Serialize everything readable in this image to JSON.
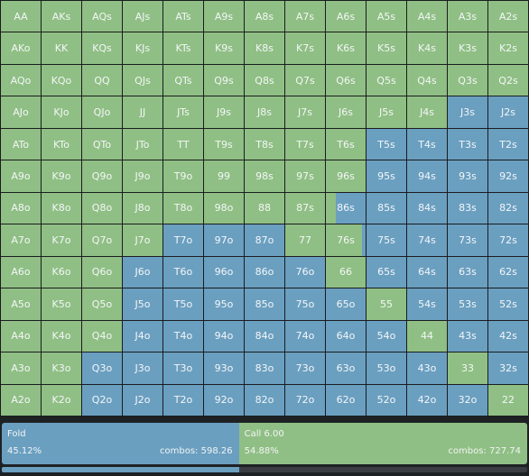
{
  "colors": {
    "fold": "#6a9fc0",
    "call": "#8fbf84"
  },
  "matrix": [
    [
      {
        "label": "AA",
        "call": 1
      },
      {
        "label": "AKs",
        "call": 1
      },
      {
        "label": "AQs",
        "call": 1
      },
      {
        "label": "AJs",
        "call": 1
      },
      {
        "label": "ATs",
        "call": 1
      },
      {
        "label": "A9s",
        "call": 1
      },
      {
        "label": "A8s",
        "call": 1
      },
      {
        "label": "A7s",
        "call": 1
      },
      {
        "label": "A6s",
        "call": 1
      },
      {
        "label": "A5s",
        "call": 1
      },
      {
        "label": "A4s",
        "call": 1
      },
      {
        "label": "A3s",
        "call": 1
      },
      {
        "label": "A2s",
        "call": 1
      }
    ],
    [
      {
        "label": "AKo",
        "call": 1
      },
      {
        "label": "KK",
        "call": 1
      },
      {
        "label": "KQs",
        "call": 1
      },
      {
        "label": "KJs",
        "call": 1
      },
      {
        "label": "KTs",
        "call": 1
      },
      {
        "label": "K9s",
        "call": 1
      },
      {
        "label": "K8s",
        "call": 1
      },
      {
        "label": "K7s",
        "call": 1
      },
      {
        "label": "K6s",
        "call": 1
      },
      {
        "label": "K5s",
        "call": 1
      },
      {
        "label": "K4s",
        "call": 1
      },
      {
        "label": "K3s",
        "call": 1
      },
      {
        "label": "K2s",
        "call": 1
      }
    ],
    [
      {
        "label": "AQo",
        "call": 1
      },
      {
        "label": "KQo",
        "call": 1
      },
      {
        "label": "QQ",
        "call": 1
      },
      {
        "label": "QJs",
        "call": 1
      },
      {
        "label": "QTs",
        "call": 1
      },
      {
        "label": "Q9s",
        "call": 1
      },
      {
        "label": "Q8s",
        "call": 1
      },
      {
        "label": "Q7s",
        "call": 1
      },
      {
        "label": "Q6s",
        "call": 1
      },
      {
        "label": "Q5s",
        "call": 1
      },
      {
        "label": "Q4s",
        "call": 1
      },
      {
        "label": "Q3s",
        "call": 1
      },
      {
        "label": "Q2s",
        "call": 1
      }
    ],
    [
      {
        "label": "AJo",
        "call": 1
      },
      {
        "label": "KJo",
        "call": 1
      },
      {
        "label": "QJo",
        "call": 1
      },
      {
        "label": "JJ",
        "call": 1
      },
      {
        "label": "JTs",
        "call": 1
      },
      {
        "label": "J9s",
        "call": 1
      },
      {
        "label": "J8s",
        "call": 1
      },
      {
        "label": "J7s",
        "call": 1
      },
      {
        "label": "J6s",
        "call": 1
      },
      {
        "label": "J5s",
        "call": 1
      },
      {
        "label": "J4s",
        "call": 1
      },
      {
        "label": "J3s",
        "call": 0
      },
      {
        "label": "J2s",
        "call": 0
      }
    ],
    [
      {
        "label": "ATo",
        "call": 1
      },
      {
        "label": "KTo",
        "call": 1
      },
      {
        "label": "QTo",
        "call": 1
      },
      {
        "label": "JTo",
        "call": 1
      },
      {
        "label": "TT",
        "call": 1
      },
      {
        "label": "T9s",
        "call": 1
      },
      {
        "label": "T8s",
        "call": 1
      },
      {
        "label": "T7s",
        "call": 1
      },
      {
        "label": "T6s",
        "call": 1
      },
      {
        "label": "T5s",
        "call": 0
      },
      {
        "label": "T4s",
        "call": 0
      },
      {
        "label": "T3s",
        "call": 0
      },
      {
        "label": "T2s",
        "call": 0
      }
    ],
    [
      {
        "label": "A9o",
        "call": 1
      },
      {
        "label": "K9o",
        "call": 1
      },
      {
        "label": "Q9o",
        "call": 1
      },
      {
        "label": "J9o",
        "call": 1
      },
      {
        "label": "T9o",
        "call": 1
      },
      {
        "label": "99",
        "call": 1
      },
      {
        "label": "98s",
        "call": 1
      },
      {
        "label": "97s",
        "call": 1
      },
      {
        "label": "96s",
        "call": 1
      },
      {
        "label": "95s",
        "call": 0
      },
      {
        "label": "94s",
        "call": 0
      },
      {
        "label": "93s",
        "call": 0
      },
      {
        "label": "92s",
        "call": 0
      }
    ],
    [
      {
        "label": "A8o",
        "call": 1
      },
      {
        "label": "K8o",
        "call": 1
      },
      {
        "label": "Q8o",
        "call": 1
      },
      {
        "label": "J8o",
        "call": 1
      },
      {
        "label": "T8o",
        "call": 1
      },
      {
        "label": "98o",
        "call": 1
      },
      {
        "label": "88",
        "call": 1
      },
      {
        "label": "87s",
        "call": 1
      },
      {
        "label": "86s",
        "call": 0.25
      },
      {
        "label": "85s",
        "call": 0
      },
      {
        "label": "84s",
        "call": 0
      },
      {
        "label": "83s",
        "call": 0
      },
      {
        "label": "82s",
        "call": 0
      }
    ],
    [
      {
        "label": "A7o",
        "call": 1
      },
      {
        "label": "K7o",
        "call": 1
      },
      {
        "label": "Q7o",
        "call": 1
      },
      {
        "label": "J7o",
        "call": 1
      },
      {
        "label": "T7o",
        "call": 0
      },
      {
        "label": "97o",
        "call": 0
      },
      {
        "label": "87o",
        "call": 0
      },
      {
        "label": "77",
        "call": 1
      },
      {
        "label": "76s",
        "call": 0.9
      },
      {
        "label": "75s",
        "call": 0
      },
      {
        "label": "74s",
        "call": 0
      },
      {
        "label": "73s",
        "call": 0
      },
      {
        "label": "72s",
        "call": 0
      }
    ],
    [
      {
        "label": "A6o",
        "call": 1
      },
      {
        "label": "K6o",
        "call": 1
      },
      {
        "label": "Q6o",
        "call": 1
      },
      {
        "label": "J6o",
        "call": 0
      },
      {
        "label": "T6o",
        "call": 0
      },
      {
        "label": "96o",
        "call": 0
      },
      {
        "label": "86o",
        "call": 0
      },
      {
        "label": "76o",
        "call": 0
      },
      {
        "label": "66",
        "call": 1
      },
      {
        "label": "65s",
        "call": 0
      },
      {
        "label": "64s",
        "call": 0
      },
      {
        "label": "63s",
        "call": 0
      },
      {
        "label": "62s",
        "call": 0
      }
    ],
    [
      {
        "label": "A5o",
        "call": 1
      },
      {
        "label": "K5o",
        "call": 1
      },
      {
        "label": "Q5o",
        "call": 1
      },
      {
        "label": "J5o",
        "call": 0
      },
      {
        "label": "T5o",
        "call": 0
      },
      {
        "label": "95o",
        "call": 0
      },
      {
        "label": "85o",
        "call": 0
      },
      {
        "label": "75o",
        "call": 0
      },
      {
        "label": "65o",
        "call": 0
      },
      {
        "label": "55",
        "call": 1
      },
      {
        "label": "54s",
        "call": 0
      },
      {
        "label": "53s",
        "call": 0
      },
      {
        "label": "52s",
        "call": 0
      }
    ],
    [
      {
        "label": "A4o",
        "call": 1
      },
      {
        "label": "K4o",
        "call": 1
      },
      {
        "label": "Q4o",
        "call": 1
      },
      {
        "label": "J4o",
        "call": 0
      },
      {
        "label": "T4o",
        "call": 0
      },
      {
        "label": "94o",
        "call": 0
      },
      {
        "label": "84o",
        "call": 0
      },
      {
        "label": "74o",
        "call": 0
      },
      {
        "label": "64o",
        "call": 0
      },
      {
        "label": "54o",
        "call": 0
      },
      {
        "label": "44",
        "call": 1
      },
      {
        "label": "43s",
        "call": 0
      },
      {
        "label": "42s",
        "call": 0
      }
    ],
    [
      {
        "label": "A3o",
        "call": 1
      },
      {
        "label": "K3o",
        "call": 1
      },
      {
        "label": "Q3o",
        "call": 0
      },
      {
        "label": "J3o",
        "call": 0
      },
      {
        "label": "T3o",
        "call": 0
      },
      {
        "label": "93o",
        "call": 0
      },
      {
        "label": "83o",
        "call": 0
      },
      {
        "label": "73o",
        "call": 0
      },
      {
        "label": "63o",
        "call": 0
      },
      {
        "label": "53o",
        "call": 0
      },
      {
        "label": "43o",
        "call": 0
      },
      {
        "label": "33",
        "call": 1
      },
      {
        "label": "32s",
        "call": 0
      }
    ],
    [
      {
        "label": "A2o",
        "call": 1
      },
      {
        "label": "K2o",
        "call": 1
      },
      {
        "label": "Q2o",
        "call": 0
      },
      {
        "label": "J2o",
        "call": 0
      },
      {
        "label": "T2o",
        "call": 0
      },
      {
        "label": "92o",
        "call": 0
      },
      {
        "label": "82o",
        "call": 0
      },
      {
        "label": "72o",
        "call": 0
      },
      {
        "label": "62o",
        "call": 0
      },
      {
        "label": "52o",
        "call": 0
      },
      {
        "label": "42o",
        "call": 0
      },
      {
        "label": "32o",
        "call": 0
      },
      {
        "label": "22",
        "call": 1
      }
    ]
  ],
  "summary": {
    "fold": {
      "name": "Fold",
      "pct": "45.12%",
      "combos": "combos: 598.26",
      "share": 0.4512
    },
    "call": {
      "name": "Call 6.00",
      "pct": "54.88%",
      "combos": "combos: 727.74",
      "share": 0.5488
    }
  },
  "bottom_bar": {
    "fold_share": 0.4512
  }
}
